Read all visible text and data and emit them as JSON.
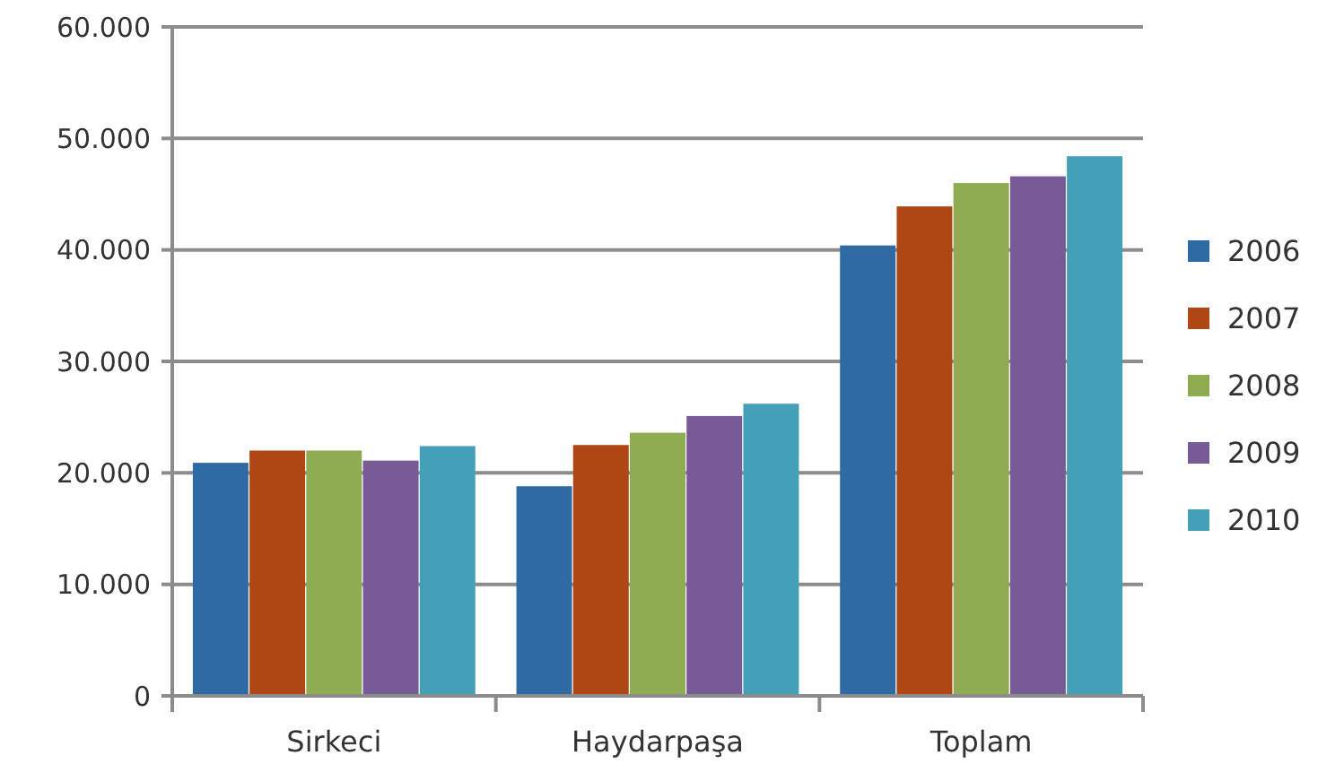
{
  "chart_data": {
    "type": "bar",
    "categories": [
      "Sirkeci",
      "Haydarpaşa",
      "Toplam"
    ],
    "series": [
      {
        "name": "2006",
        "color": "#2e6aa3",
        "values": [
          20900,
          18800,
          40400
        ]
      },
      {
        "name": "2007",
        "color": "#b04515",
        "values": [
          22000,
          22500,
          43900
        ]
      },
      {
        "name": "2008",
        "color": "#8fac52",
        "values": [
          22000,
          23600,
          46000
        ]
      },
      {
        "name": "2009",
        "color": "#765b96",
        "values": [
          21100,
          25100,
          46600
        ]
      },
      {
        "name": "2010",
        "color": "#44a0b8",
        "values": [
          22400,
          26200,
          48400
        ]
      }
    ],
    "ylim": [
      0,
      60000
    ],
    "yticks": [
      {
        "value": 0,
        "label": "0"
      },
      {
        "value": 10000,
        "label": "10.000"
      },
      {
        "value": 20000,
        "label": "20.000"
      },
      {
        "value": 30000,
        "label": "30.000"
      },
      {
        "value": 40000,
        "label": "40.000"
      },
      {
        "value": 50000,
        "label": "50.000"
      },
      {
        "value": 60000,
        "label": "60.000"
      }
    ],
    "grid": "y",
    "legend": "right"
  }
}
